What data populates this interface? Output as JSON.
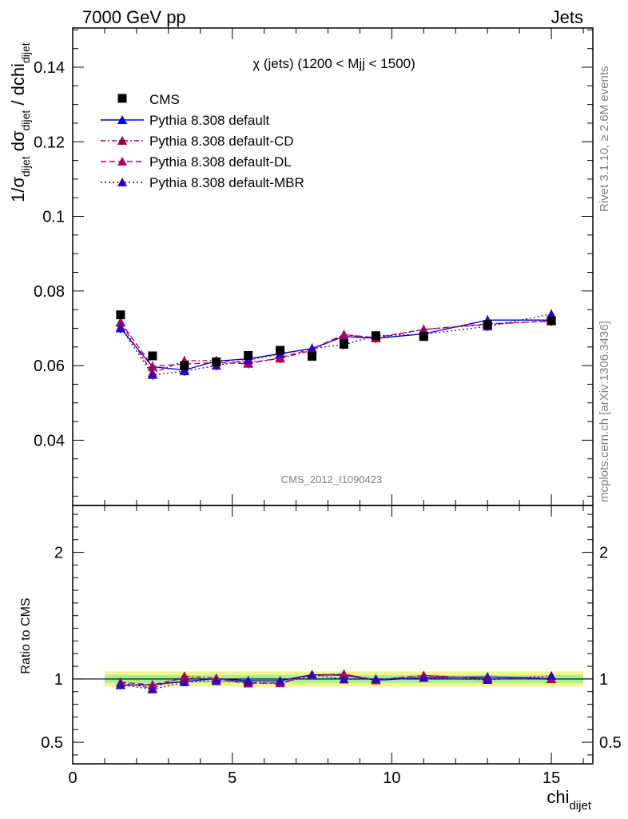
{
  "header": {
    "left": "7000 GeV pp",
    "right": "Jets"
  },
  "side_labels": {
    "rivet": "Rivet 3.1.10, ≥ 2.6M events",
    "mcplots": "mcplots.cern.ch [arXiv:1306.3436]"
  },
  "chart_data": {
    "type": "line",
    "title": "χ (jets) (1200 < Mjj < 1500)",
    "watermark": "CMS_2012_I1090423",
    "xlabel": {
      "main": "chi",
      "sub": "dijet"
    },
    "ylabel_main": {
      "p1": "1/σ",
      "p1sub": "dijet",
      "p2": " dσ",
      "p2sub": "dijet",
      "p3": " / dchi",
      "p3sub": "dijet"
    },
    "ylabel_ratio": "Ratio to CMS",
    "xlim": [
      0,
      16.3
    ],
    "ylim_main": [
      0.0225,
      0.1505
    ],
    "ylim_ratio": [
      0.33,
      2.37
    ],
    "x_ticks": [
      0,
      5,
      10,
      15
    ],
    "x_tick_labels": [
      "0",
      "5",
      "10",
      "15"
    ],
    "y_ticks_main": [
      0.04,
      0.06,
      0.08,
      0.1,
      0.12,
      0.14
    ],
    "y_tick_labels_main": [
      "0.04",
      "0.06",
      "0.08",
      "0.1",
      "0.12",
      "0.14"
    ],
    "y_ticks_ratio": [
      0.5,
      1,
      2
    ],
    "y_tick_labels_ratio": [
      "0.5",
      "1",
      "2"
    ],
    "y_ticks_ratio_right": [
      "0.5",
      "1",
      "2"
    ],
    "legend_position": "top-left",
    "x": [
      1.5,
      2.5,
      3.5,
      4.5,
      5.5,
      6.5,
      7.5,
      8.5,
      9.5,
      11.0,
      13.0,
      15.0
    ],
    "bin_edges": [
      1,
      2,
      3,
      4,
      5,
      6,
      7,
      8,
      9,
      10,
      12,
      14,
      16
    ],
    "data": {
      "name": "CMS",
      "values": [
        0.0736,
        0.0626,
        0.06,
        0.061,
        0.0627,
        0.0641,
        0.0625,
        0.0658,
        0.068,
        0.0678,
        0.071,
        0.072
      ]
    },
    "series": [
      {
        "name": "Pythia 8.308 default",
        "color": "#0000dd",
        "dash": "",
        "values": [
          0.07,
          0.0597,
          0.0588,
          0.0612,
          0.0618,
          0.0632,
          0.0646,
          0.0678,
          0.0673,
          0.0685,
          0.0722,
          0.0722
        ],
        "ratio": [
          0.951,
          0.954,
          0.98,
          1.003,
          0.986,
          0.986,
          1.034,
          1.03,
          0.99,
          1.01,
          1.017,
          1.003
        ]
      },
      {
        "name": "Pythia 8.308 default-CD",
        "color": "#aa0033",
        "dash": "6,3,2,3",
        "values": [
          0.0715,
          0.058,
          0.0613,
          0.0613,
          0.0608,
          0.0619,
          0.0641,
          0.0683,
          0.0673,
          0.0697,
          0.071,
          0.072
        ],
        "ratio": [
          0.971,
          0.927,
          1.022,
          1.005,
          0.97,
          0.966,
          1.026,
          1.038,
          0.99,
          1.028,
          1.0,
          1.0
        ]
      },
      {
        "name": "Pythia 8.308 default-DL",
        "color": "#aa0066",
        "dash": "7,4",
        "values": [
          0.0717,
          0.0598,
          0.0604,
          0.0608,
          0.0605,
          0.0621,
          0.0645,
          0.0683,
          0.0675,
          0.0697,
          0.0712,
          0.0719
        ],
        "ratio": [
          0.974,
          0.955,
          1.007,
          0.997,
          0.965,
          0.969,
          1.032,
          1.038,
          0.993,
          1.028,
          1.003,
          0.999
        ]
      },
      {
        "name": "Pythia 8.308 default-MBR",
        "color": "#3300bb",
        "dash": "2,3",
        "values": [
          0.0703,
          0.0575,
          0.0585,
          0.06,
          0.0615,
          0.0631,
          0.0646,
          0.0656,
          0.068,
          0.0684,
          0.0705,
          0.0738
        ],
        "ratio": [
          0.955,
          0.918,
          0.975,
          0.984,
          0.981,
          0.984,
          1.034,
          0.997,
          1.0,
          1.009,
          0.993,
          1.025
        ]
      }
    ],
    "ratio_band": {
      "green": 0.03,
      "yellow": 0.06
    }
  }
}
